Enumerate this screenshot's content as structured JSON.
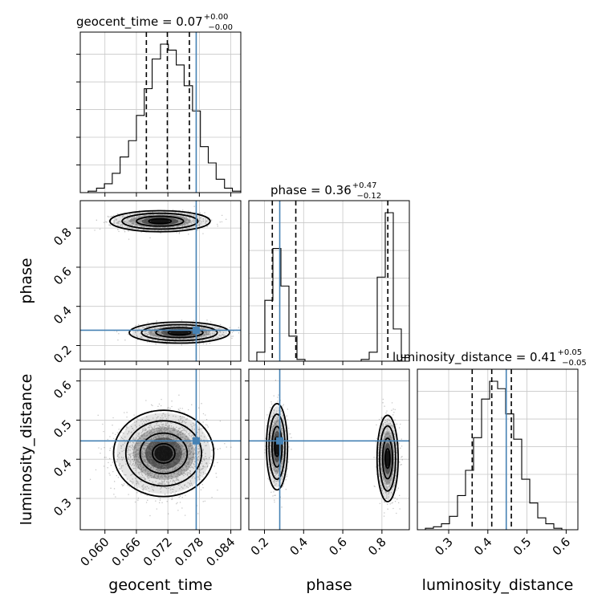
{
  "chart_data": {
    "type": "corner",
    "parameters": [
      "geocent_time",
      "phase",
      "luminosity_distance"
    ],
    "truths": {
      "geocent_time": 0.0774,
      "phase": 0.278,
      "luminosity_distance": 0.447
    },
    "truth_color": "#4682b4",
    "grid": true,
    "titles": {
      "geocent_time": {
        "text": "geocent_time = 0.07",
        "upper": "+0.00",
        "lower": "−0.00"
      },
      "phase": {
        "text": "phase = 0.36",
        "upper": "+0.47",
        "lower": "−0.12"
      },
      "luminosity_distance": {
        "text": "luminosity_distance = 0.41",
        "upper": "+0.05",
        "lower": "−0.05"
      }
    },
    "axis_labels": {
      "geocent_time": "geocent_time",
      "phase": "phase",
      "luminosity_distance": "luminosity_distance"
    },
    "ranges": {
      "geocent_time": [
        0.0553,
        0.0859
      ],
      "phase": [
        0.12,
        0.94
      ],
      "luminosity_distance": [
        0.22,
        0.63
      ]
    },
    "ticks": {
      "geocent_time": {
        "values": [
          0.06,
          0.066,
          0.072,
          0.078,
          0.084
        ],
        "labels": [
          "0.060",
          "0.066",
          "0.072",
          "0.078",
          "0.084"
        ]
      },
      "phase": {
        "values": [
          0.2,
          0.4,
          0.6,
          0.8
        ],
        "labels": [
          "0.2",
          "0.4",
          "0.6",
          "0.8"
        ]
      },
      "luminosity_distance": {
        "values": [
          0.3,
          0.4,
          0.5,
          0.6
        ],
        "labels": [
          "0.3",
          "0.4",
          "0.5",
          "0.6"
        ]
      }
    },
    "quantiles": {
      "geocent_time": [
        0.0679,
        0.0719,
        0.0761
      ],
      "phase": [
        0.24,
        0.36,
        0.83
      ],
      "luminosity_distance": [
        0.36,
        0.41,
        0.46
      ]
    },
    "histograms": {
      "geocent_time": {
        "edges": [
          0.0553,
          0.0568,
          0.0584,
          0.0599,
          0.0614,
          0.0629,
          0.0645,
          0.066,
          0.0675,
          0.069,
          0.0706,
          0.0721,
          0.0736,
          0.0751,
          0.0767,
          0.0782,
          0.0797,
          0.0812,
          0.0828,
          0.0843,
          0.0859
        ],
        "counts": [
          0,
          1,
          3,
          6,
          13,
          24,
          35,
          52,
          70,
          90,
          100,
          96,
          86,
          72,
          55,
          31,
          20,
          9,
          3,
          1
        ]
      },
      "phase": {
        "edges": [
          0.12,
          0.161,
          0.202,
          0.243,
          0.284,
          0.325,
          0.366,
          0.407,
          0.448,
          0.489,
          0.53,
          0.571,
          0.612,
          0.653,
          0.694,
          0.735,
          0.776,
          0.817,
          0.858,
          0.899,
          0.94
        ],
        "counts": [
          0,
          5,
          34,
          63,
          42,
          14,
          1,
          0,
          0,
          0,
          0,
          0,
          0,
          0,
          1,
          5,
          47,
          83,
          18,
          2
        ]
      },
      "luminosity_distance": {
        "edges": [
          0.22,
          0.2405,
          0.261,
          0.2815,
          0.302,
          0.3225,
          0.343,
          0.3635,
          0.384,
          0.4045,
          0.425,
          0.4455,
          0.466,
          0.4865,
          0.507,
          0.5275,
          0.548,
          0.5685,
          0.589,
          0.6095,
          0.63
        ],
        "counts": [
          0,
          1,
          2,
          4,
          9,
          23,
          40,
          62,
          88,
          100,
          95,
          78,
          61,
          34,
          18,
          8,
          4,
          1,
          0,
          0
        ]
      }
    },
    "posterior_2d": {
      "phase_vs_geocent_time": {
        "modes": [
          {
            "geocent_time": 0.0705,
            "phase": 0.835,
            "weight": 0.58
          },
          {
            "geocent_time": 0.0742,
            "phase": 0.266,
            "weight": 0.42
          }
        ]
      },
      "luminosity_distance_vs_geocent_time": {
        "modes": [
          {
            "geocent_time": 0.0712,
            "luminosity_distance": 0.415,
            "weight": 1.0
          }
        ]
      },
      "luminosity_distance_vs_phase": {
        "modes": [
          {
            "phase": 0.264,
            "luminosity_distance": 0.432,
            "weight": 0.42
          },
          {
            "phase": 0.829,
            "luminosity_distance": 0.402,
            "weight": 0.58
          }
        ]
      }
    }
  }
}
